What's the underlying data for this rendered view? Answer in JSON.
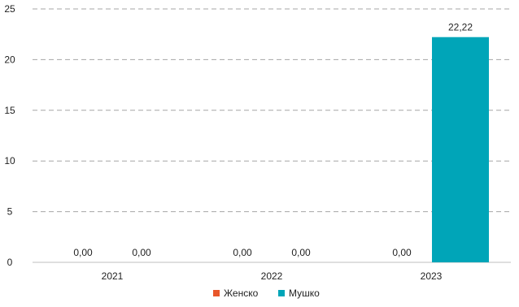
{
  "chart_data": {
    "type": "bar",
    "categories": [
      "2021",
      "2022",
      "2023"
    ],
    "series": [
      {
        "name": "Женско",
        "color": "#e8572a",
        "values": [
          0,
          0,
          0
        ],
        "labels": [
          "0,00",
          "0,00",
          "0,00"
        ]
      },
      {
        "name": "Мушко",
        "color": "#00a5b8",
        "values": [
          0,
          0,
          22.22
        ],
        "labels": [
          "0,00",
          "0,00",
          "22,22"
        ]
      }
    ],
    "ylim": [
      0,
      25
    ],
    "yticks": [
      "0",
      "5",
      "10",
      "15",
      "20",
      "25"
    ],
    "grid": true,
    "legend": "bottom"
  }
}
